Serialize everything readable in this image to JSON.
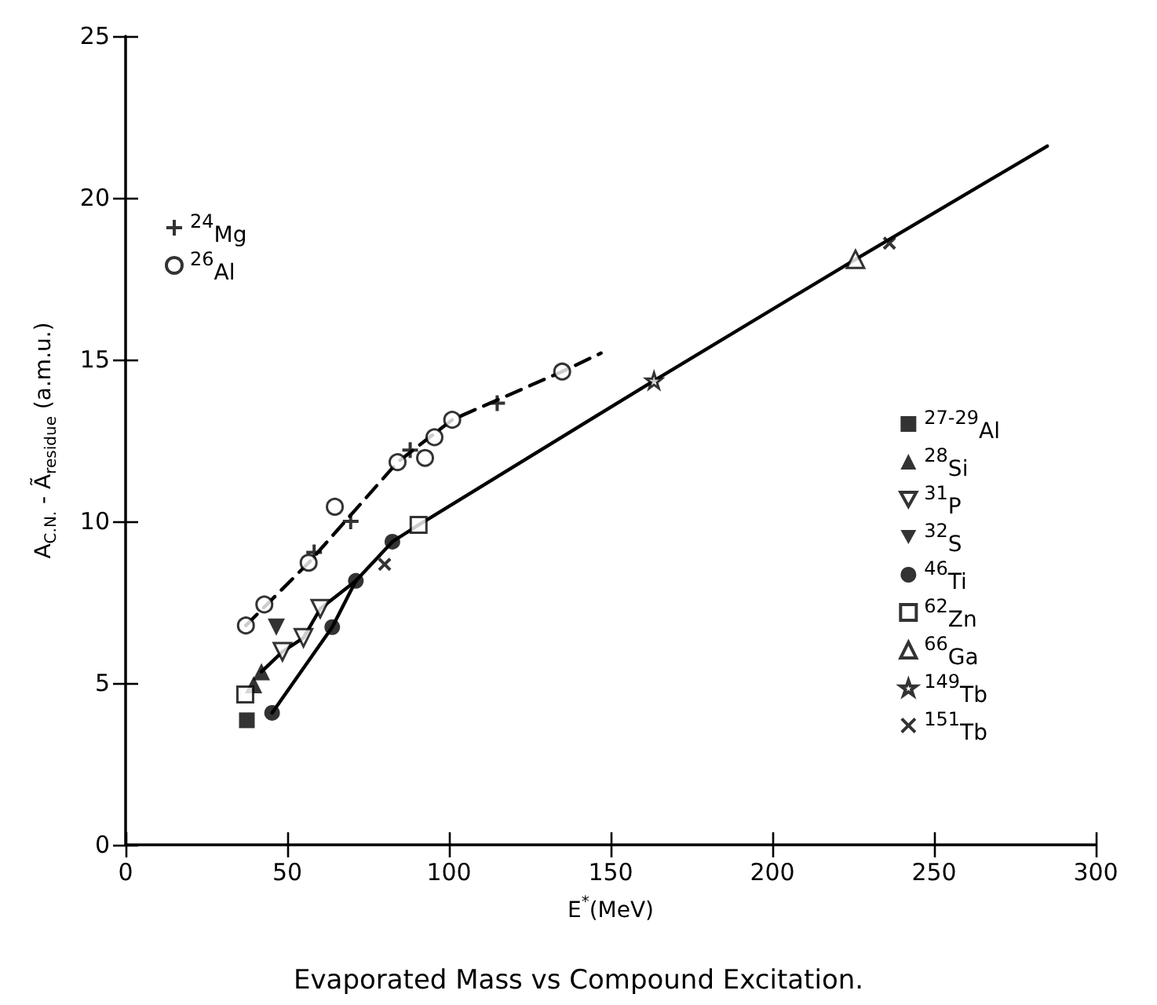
{
  "chart_data": {
    "type": "scatter",
    "title": "Evaporated Mass vs Compound Excitation.",
    "xlabel": "E$^{*}$(MeV)",
    "ylabel": "A$_{C.N.}$ - Ã$_{residue}$ (a.m.u.)",
    "xlim": [
      0,
      300
    ],
    "ylim": [
      0,
      25
    ],
    "xticks": [
      0,
      50,
      100,
      150,
      200,
      250,
      300
    ],
    "yticks": [
      0,
      5,
      10,
      15,
      20,
      25
    ],
    "grid": false,
    "legend": "right",
    "series": [
      {
        "name": "$^{24}$Mg",
        "color": "#000000",
        "marker": "plus",
        "x": [
          58.3,
          69.6,
          88,
          114.9
        ],
        "values": [
          9.04,
          10.0,
          12.2,
          13.65
        ]
      },
      {
        "name": "$^{26}$Al",
        "color": "#000000",
        "marker": "circle-open",
        "x": [
          37.2,
          42.9,
          56.6,
          64.7,
          84.1,
          92.6,
          95.5,
          101,
          135
        ],
        "values": [
          6.78,
          7.43,
          8.72,
          10.45,
          11.83,
          11.96,
          12.6,
          13.14,
          14.63
        ]
      },
      {
        "name": "$^{27-29}$Al",
        "color": "#000000",
        "marker": "square",
        "x": [
          37.5
        ],
        "values": [
          3.85
        ]
      },
      {
        "name": "$^{28}$Si",
        "color": "#000000",
        "marker": "triangle",
        "x": [
          39.6,
          42
        ],
        "values": [
          4.95,
          5.35
        ]
      },
      {
        "name": "$^{31}$P",
        "color": "#000000",
        "marker": "triangle-down-open",
        "x": [
          48.5,
          55,
          60.2
        ],
        "values": [
          5.97,
          6.4,
          7.3
        ]
      },
      {
        "name": "$^{32}$S",
        "color": "#000000",
        "marker": "triangle-down",
        "x": [
          46.6
        ],
        "values": [
          6.73
        ]
      },
      {
        "name": "$^{46}$Ti",
        "color": "#000000",
        "marker": "circle",
        "x": [
          45.3,
          63.9,
          71.2,
          82.5
        ],
        "values": [
          4.08,
          6.73,
          8.16,
          9.37
        ]
      },
      {
        "name": "$^{62}$Zn",
        "color": "#000000",
        "marker": "square-open",
        "x": [
          37,
          90.6
        ],
        "values": [
          4.65,
          9.89
        ]
      },
      {
        "name": "$^{66}$Ga",
        "color": "#000000",
        "marker": "triangle-open",
        "x": [
          225.7
        ],
        "values": [
          18.1
        ]
      },
      {
        "name": "$^{149}$Tb",
        "color": "#000000",
        "marker": "star-open",
        "x": [
          163.4
        ],
        "values": [
          14.35
        ]
      },
      {
        "name": "$^{151}$Tb",
        "color": "#000000",
        "marker": "cross",
        "x": [
          80.1,
          236.2
        ],
        "values": [
          8.67,
          18.6
        ]
      },
      {
        "type": "line",
        "color": "#000000",
        "line_style": "dashed",
        "marker": "none",
        "x": [
          37.2,
          56.6,
          84.1,
          101,
          135,
          147
        ],
        "values": [
          6.78,
          8.72,
          11.83,
          13.14,
          14.63,
          15.2
        ]
      },
      {
        "type": "line",
        "color": "#000000",
        "line_style": "solid",
        "marker": "none",
        "x": [
          45.3,
          63.9,
          71.2,
          82.5,
          90.6
        ],
        "values": [
          4.08,
          6.73,
          8.16,
          9.37,
          9.89
        ]
      },
      {
        "type": "line",
        "color": "#000000",
        "line_style": "solid",
        "marker": "none",
        "x": [
          42,
          48.5,
          55,
          60.2,
          71.2
        ],
        "values": [
          5.35,
          5.97,
          6.4,
          7.3,
          8.16
        ]
      },
      {
        "type": "line",
        "color": "#000000",
        "line_style": "solid",
        "marker": "none",
        "x": [
          90.6,
          163.4,
          225.7,
          285
        ],
        "values": [
          9.89,
          14.35,
          18.1,
          21.6
        ]
      }
    ]
  }
}
